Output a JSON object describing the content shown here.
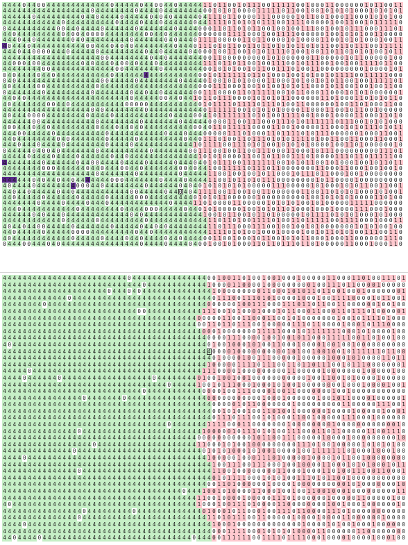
{
  "top_grid": {
    "rows": 42,
    "cols": 82,
    "seed": 7,
    "fill_value": "4",
    "zero_value": "0",
    "one_value": "1",
    "boundary_col": 41,
    "colors": {
      "green": "#c6efc6",
      "pink": "#ffc9cf",
      "purple": "#5b2a8c",
      "white": "#ffffff"
    },
    "purple_cells": [
      [
        7,
        0
      ],
      [
        12,
        29
      ],
      [
        27,
        0
      ],
      [
        30,
        0
      ],
      [
        30,
        1
      ],
      [
        30,
        2
      ],
      [
        30,
        17
      ],
      [
        31,
        14
      ]
    ],
    "cursor": [
      32,
      36
    ]
  },
  "bottom_grid": {
    "rows": 40,
    "cols": 81,
    "seed": 13,
    "fill_value": "4",
    "zero_value": "0",
    "one_value": "1",
    "boundary_col": 41,
    "colors": {
      "green": "#c6efc6",
      "pink": "#ffc9cf",
      "white": "#ffffff"
    },
    "cursor": [
      11,
      41
    ]
  }
}
